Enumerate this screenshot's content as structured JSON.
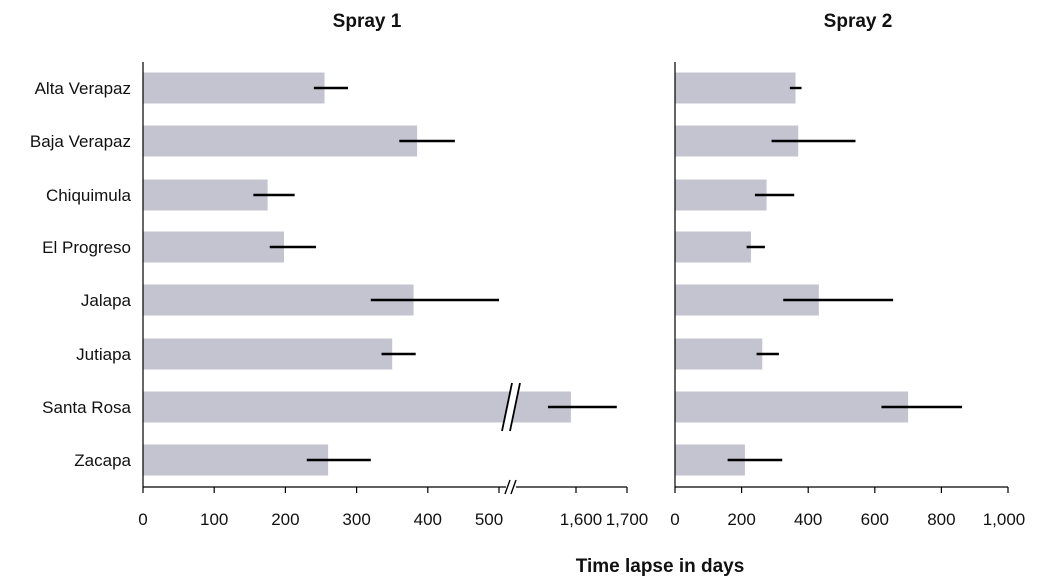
{
  "chart_data": [
    {
      "type": "bar",
      "orientation": "horizontal",
      "title": "Spray 1",
      "categories": [
        "Alta Verapaz",
        "Baja Verapaz",
        "Chiquimula",
        "El Progreso",
        "Jalapa",
        "Jutiapa",
        "Santa Rosa",
        "Zacapa"
      ],
      "values": [
        255,
        385,
        175,
        198,
        380,
        350,
        1590,
        260
      ],
      "error_low": [
        240,
        360,
        155,
        178,
        320,
        335,
        1545,
        230
      ],
      "error_high": [
        288,
        438,
        213,
        243,
        500,
        383,
        1680,
        320
      ],
      "axis_break": {
        "from": 500,
        "to": 1500
      },
      "x_segments": [
        [
          0,
          500
        ],
        [
          1500,
          1700
        ]
      ],
      "xticks": [
        0,
        100,
        200,
        300,
        400,
        500,
        1600,
        1700
      ],
      "xtick_labels": [
        "0",
        "100",
        "200",
        "300",
        "400",
        "500",
        "1,600",
        "1,700"
      ],
      "grid": false,
      "bar_color": "#c4c3d0",
      "error_color": "#000000"
    },
    {
      "type": "bar",
      "orientation": "horizontal",
      "title": "Spray 2",
      "categories": [
        "Alta Verapaz",
        "Baja Verapaz",
        "Chiquimula",
        "El Progreso",
        "Jalapa",
        "Jutiapa",
        "Santa Rosa",
        "Zacapa"
      ],
      "values": [
        362,
        370,
        275,
        228,
        432,
        262,
        700,
        210
      ],
      "error_low": [
        345,
        290,
        240,
        215,
        325,
        245,
        620,
        158
      ],
      "error_high": [
        380,
        542,
        358,
        270,
        655,
        312,
        862,
        322
      ],
      "xlim": [
        0,
        1000
      ],
      "xticks": [
        0,
        200,
        400,
        600,
        800,
        1000
      ],
      "xtick_labels": [
        "0",
        "200",
        "400",
        "600",
        "800",
        "1,000"
      ],
      "grid": false,
      "bar_color": "#c4c3d0",
      "error_color": "#000000"
    }
  ],
  "xlabel": "Time lapse in days"
}
